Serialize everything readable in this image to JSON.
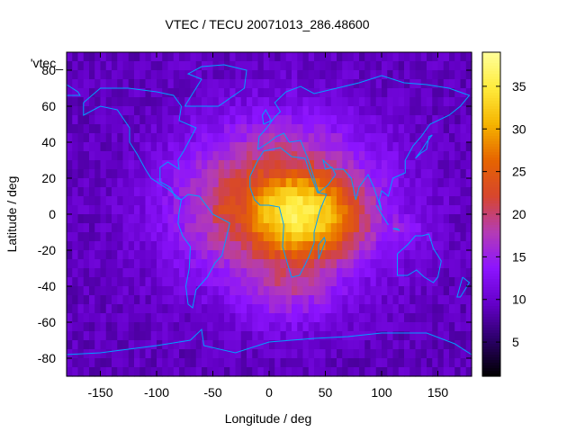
{
  "chart_data": {
    "type": "heatmap",
    "title": "VTEC / TECU 20071013_286.48600",
    "xlabel": "Longitude / deg",
    "ylabel": "Latitude / deg",
    "series_label": "'vtec_",
    "xlim": [
      -180,
      180
    ],
    "ylim": [
      -90,
      90
    ],
    "x_ticks": [
      -150,
      -100,
      -50,
      0,
      50,
      100,
      150
    ],
    "y_ticks": [
      -80,
      -60,
      -40,
      -20,
      0,
      20,
      40,
      60,
      80
    ],
    "colorbar": {
      "range": [
        1,
        39
      ],
      "ticks": [
        5,
        10,
        15,
        20,
        25,
        30,
        35
      ],
      "palette": [
        "#000000",
        "#2a0066",
        "#6400c8",
        "#8c14ff",
        "#b43cb4",
        "#d7462d",
        "#e66400",
        "#f5b400",
        "#ffeb3c",
        "#ffff9b"
      ]
    },
    "anomaly_features": [
      {
        "lon": 25,
        "lat": 0,
        "tec": 36,
        "sigma_lon": 45,
        "sigma_lat": 22
      },
      {
        "lon": 10,
        "lat": 5,
        "tec": 26,
        "sigma_lon": 60,
        "sigma_lat": 30
      },
      {
        "lon": -35,
        "lat": 3,
        "tec": 23,
        "sigma_lon": 22,
        "sigma_lat": 18
      },
      {
        "lon": 15,
        "lat": -30,
        "tec": 20,
        "sigma_lon": 40,
        "sigma_lat": 20
      },
      {
        "lon": 110,
        "lat": -8,
        "tec": 15,
        "sigma_lon": 25,
        "sigma_lat": 10
      }
    ],
    "background_tec": 9,
    "polar_tec": 5
  },
  "colors": {
    "coastline": "#00a0ff",
    "axis": "#000000"
  }
}
